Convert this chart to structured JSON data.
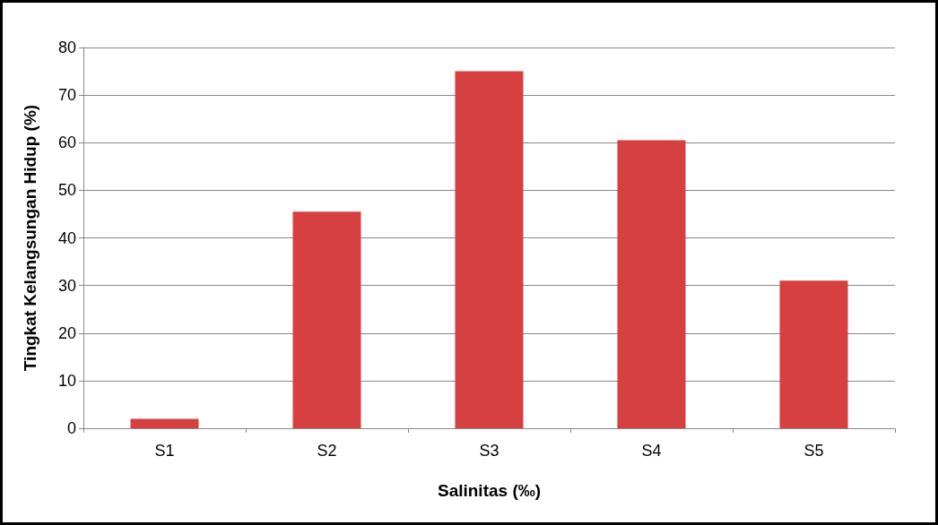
{
  "chart_data": {
    "type": "bar",
    "xlabel": "Salinitas (‰)",
    "ylabel": "Tingkat Kelangsungan Hidup (%)",
    "categories": [
      "S1",
      "S2",
      "S3",
      "S4",
      "S5"
    ],
    "values": [
      2,
      45.5,
      75,
      60.5,
      31
    ],
    "color": "#d64040",
    "ylim": [
      0,
      80
    ],
    "yticks": [
      0,
      10,
      20,
      30,
      40,
      50,
      60,
      70,
      80
    ],
    "grid": "y"
  }
}
